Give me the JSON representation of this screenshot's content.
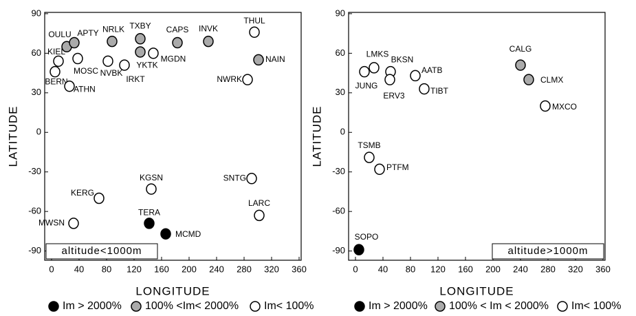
{
  "chart_data": [
    {
      "type": "scatter",
      "xlabel": "LONGITUDE",
      "ylabel": "LATITUDE",
      "annotation": "altitude<1000m",
      "xlim": [
        -10,
        363
      ],
      "ylim": [
        -97,
        91
      ],
      "xticks": [
        0,
        40,
        80,
        120,
        160,
        200,
        240,
        280,
        320,
        360
      ],
      "yticks": [
        -90,
        -60,
        -30,
        0,
        30,
        60,
        90
      ],
      "series": [
        {
          "name": "Im > 2000%",
          "color": "#000000",
          "labels": [
            "TERA",
            "MCMD"
          ],
          "x": [
            142,
            166
          ],
          "values": [
            -69,
            -77
          ]
        },
        {
          "name": "100% <Im< 2000%",
          "color": "#aaaaaa",
          "labels": [
            "OULU",
            "APTY",
            "NRLK",
            "TXBY",
            "YKTK",
            "CAPS",
            "INVK",
            "NAIN"
          ],
          "x": [
            22,
            33,
            88,
            129,
            129,
            183,
            228,
            301
          ],
          "values": [
            65,
            68,
            69,
            71,
            61,
            68,
            69,
            55
          ]
        },
        {
          "name": "Im< 100%",
          "color": "#ffffff",
          "labels": [
            "KIEL",
            "BERN",
            "ATHN",
            "MOSC",
            "NVBK",
            "IRKT",
            "MGDN",
            "THUL",
            "NWRK",
            "KGSN",
            "SNTG",
            "KERG",
            "LARC",
            "MWSN"
          ],
          "x": [
            10,
            5,
            26,
            38,
            82,
            106,
            148,
            295,
            285,
            145,
            291,
            69,
            302,
            32
          ],
          "values": [
            54,
            46,
            35,
            56,
            54,
            51,
            60,
            76,
            40,
            -43,
            -35,
            -50,
            -63,
            -69
          ]
        }
      ]
    },
    {
      "type": "scatter",
      "xlabel": "LONGITUDE",
      "ylabel": "LATITUDE",
      "annotation": "altitude>1000m",
      "xlim": [
        -10,
        363
      ],
      "ylim": [
        -97,
        91
      ],
      "xticks": [
        0,
        40,
        80,
        120,
        160,
        200,
        240,
        280,
        320,
        360
      ],
      "yticks": [
        -90,
        -60,
        -30,
        0,
        30,
        60,
        90
      ],
      "series": [
        {
          "name": "Im > 2000%",
          "color": "#000000",
          "labels": [
            "SOPO"
          ],
          "x": [
            5
          ],
          "values": [
            -89
          ]
        },
        {
          "name": "100% < Im < 2000%",
          "color": "#aaaaaa",
          "labels": [
            "CALG",
            "CLMX"
          ],
          "x": [
            240,
            252
          ],
          "values": [
            51,
            40
          ]
        },
        {
          "name": "Im< 100%",
          "color": "#ffffff",
          "labels": [
            "LMKS",
            "JUNG",
            "BKSN",
            "ERV3",
            "AATB",
            "TIBT",
            "MXCO",
            "TSMB",
            "PTFM"
          ],
          "x": [
            27,
            13,
            51,
            50,
            87,
            100,
            276,
            20,
            35
          ],
          "values": [
            49,
            46,
            46,
            40,
            43,
            33,
            20,
            -19,
            -28
          ]
        }
      ]
    }
  ]
}
